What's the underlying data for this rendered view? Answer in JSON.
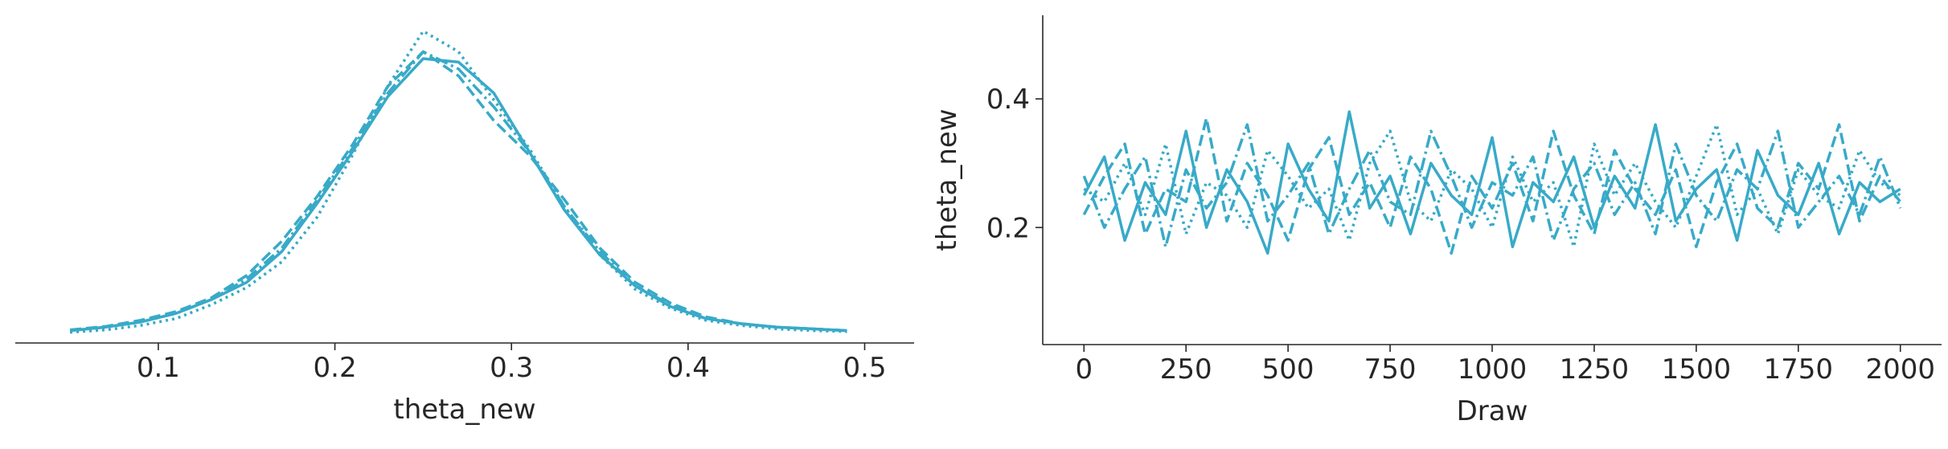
{
  "chart_data": [
    {
      "type": "kde",
      "xlabel": "theta_new",
      "x": [
        0.05,
        0.07,
        0.09,
        0.11,
        0.13,
        0.15,
        0.17,
        0.19,
        0.21,
        0.23,
        0.25,
        0.27,
        0.29,
        0.31,
        0.33,
        0.35,
        0.37,
        0.39,
        0.41,
        0.43,
        0.45,
        0.47,
        0.49
      ],
      "xlim": [
        0.019,
        0.528
      ],
      "xticks": [
        0.1,
        0.2,
        0.3,
        0.4,
        0.5
      ],
      "ylim": [
        -0.26,
        9.33
      ],
      "series": [
        {
          "color": "#38aac8",
          "linestyle": "solid",
          "values": [
            0.1,
            0.2,
            0.35,
            0.6,
            1.0,
            1.5,
            2.4,
            3.8,
            5.3,
            6.9,
            8.0,
            7.9,
            7.0,
            5.3,
            3.6,
            2.3,
            1.4,
            0.8,
            0.45,
            0.3,
            0.2,
            0.15,
            0.1
          ]
        },
        {
          "color": "#38aac8",
          "linestyle": "dashed",
          "values": [
            0.12,
            0.22,
            0.4,
            0.65,
            1.05,
            1.7,
            2.7,
            4.0,
            5.5,
            7.2,
            8.2,
            7.5,
            6.2,
            5.2,
            3.9,
            2.5,
            1.5,
            0.9,
            0.5,
            0.3,
            0.2,
            0.15,
            0.1
          ]
        },
        {
          "color": "#38aac8",
          "linestyle": "dashdot",
          "values": [
            0.1,
            0.2,
            0.35,
            0.6,
            1.0,
            1.6,
            2.5,
            3.9,
            5.4,
            7.0,
            8.2,
            7.7,
            6.6,
            5.3,
            3.7,
            2.4,
            1.4,
            0.85,
            0.45,
            0.3,
            0.2,
            0.15,
            0.1
          ]
        },
        {
          "color": "#38aac8",
          "linestyle": "dotted",
          "values": [
            0.05,
            0.12,
            0.25,
            0.45,
            0.85,
            1.35,
            2.1,
            3.4,
            5.2,
            7.2,
            8.8,
            8.2,
            6.8,
            5.4,
            3.7,
            2.3,
            1.3,
            0.75,
            0.4,
            0.25,
            0.15,
            0.1,
            0.07
          ]
        }
      ]
    },
    {
      "type": "trace",
      "xlabel": "Draw",
      "ylabel": "theta_new",
      "x": [
        0,
        50,
        100,
        150,
        200,
        250,
        300,
        350,
        400,
        450,
        500,
        550,
        600,
        650,
        700,
        750,
        800,
        850,
        900,
        950,
        1000,
        1050,
        1100,
        1150,
        1200,
        1250,
        1300,
        1350,
        1400,
        1450,
        1500,
        1550,
        1600,
        1650,
        1700,
        1750,
        1800,
        1850,
        1900,
        1950,
        2000
      ],
      "xlim": [
        -101,
        2101
      ],
      "xticks": [
        0,
        250,
        500,
        750,
        1000,
        1250,
        1500,
        1750,
        2000
      ],
      "ylim": [
        0.018,
        0.53
      ],
      "yticks": [
        0.2,
        0.4
      ],
      "series": [
        {
          "color": "#38aac8",
          "linestyle": "solid",
          "values": [
            0.25,
            0.31,
            0.18,
            0.27,
            0.22,
            0.35,
            0.2,
            0.29,
            0.24,
            0.16,
            0.33,
            0.26,
            0.21,
            0.38,
            0.23,
            0.28,
            0.19,
            0.3,
            0.25,
            0.22,
            0.34,
            0.17,
            0.27,
            0.24,
            0.31,
            0.2,
            0.28,
            0.23,
            0.36,
            0.21,
            0.26,
            0.29,
            0.18,
            0.32,
            0.25,
            0.22,
            0.3,
            0.19,
            0.27,
            0.24,
            0.26
          ]
        },
        {
          "color": "#38aac8",
          "linestyle": "dashed",
          "values": [
            0.22,
            0.28,
            0.33,
            0.19,
            0.26,
            0.24,
            0.37,
            0.21,
            0.3,
            0.25,
            0.18,
            0.29,
            0.34,
            0.22,
            0.27,
            0.2,
            0.31,
            0.26,
            0.16,
            0.28,
            0.23,
            0.3,
            0.21,
            0.35,
            0.25,
            0.19,
            0.32,
            0.26,
            0.22,
            0.29,
            0.17,
            0.27,
            0.33,
            0.23,
            0.2,
            0.3,
            0.26,
            0.36,
            0.21,
            0.28,
            0.24
          ]
        },
        {
          "color": "#38aac8",
          "linestyle": "dashdot",
          "values": [
            0.28,
            0.2,
            0.26,
            0.31,
            0.17,
            0.29,
            0.23,
            0.27,
            0.36,
            0.21,
            0.25,
            0.3,
            0.19,
            0.26,
            0.32,
            0.24,
            0.22,
            0.35,
            0.28,
            0.2,
            0.27,
            0.25,
            0.31,
            0.18,
            0.26,
            0.3,
            0.22,
            0.27,
            0.19,
            0.33,
            0.25,
            0.21,
            0.29,
            0.26,
            0.35,
            0.2,
            0.24,
            0.28,
            0.22,
            0.31,
            0.23
          ]
        },
        {
          "color": "#38aac8",
          "linestyle": "dotted",
          "values": [
            0.26,
            0.24,
            0.3,
            0.22,
            0.33,
            0.19,
            0.27,
            0.25,
            0.2,
            0.32,
            0.28,
            0.23,
            0.26,
            0.18,
            0.3,
            0.35,
            0.24,
            0.21,
            0.29,
            0.26,
            0.2,
            0.31,
            0.24,
            0.27,
            0.17,
            0.33,
            0.25,
            0.3,
            0.24,
            0.2,
            0.28,
            0.36,
            0.22,
            0.26,
            0.19,
            0.29,
            0.25,
            0.23,
            0.32,
            0.27,
            0.25
          ]
        }
      ]
    }
  ]
}
